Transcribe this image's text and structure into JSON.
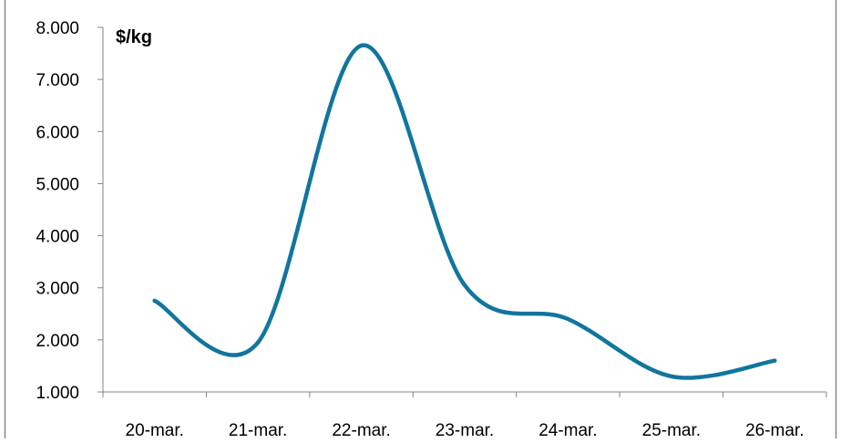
{
  "chart_data": {
    "type": "line",
    "title": "",
    "xlabel": "",
    "ylabel": "",
    "unit_label": "$/kg",
    "categories": [
      "20-mar.",
      "21-mar.",
      "22-mar.",
      "23-mar.",
      "24-mar.",
      "25-mar.",
      "26-mar."
    ],
    "y_ticks": [
      "1.000",
      "2.000",
      "3.000",
      "4.000",
      "5.000",
      "6.000",
      "7.000",
      "8.000"
    ],
    "ylim": [
      1000,
      8000
    ],
    "smooth": true,
    "grid": false,
    "legend": "none",
    "series": [
      {
        "color": "#11759E",
        "values": [
          2750,
          1950,
          7650,
          3050,
          2400,
          1300,
          1600
        ]
      }
    ]
  }
}
